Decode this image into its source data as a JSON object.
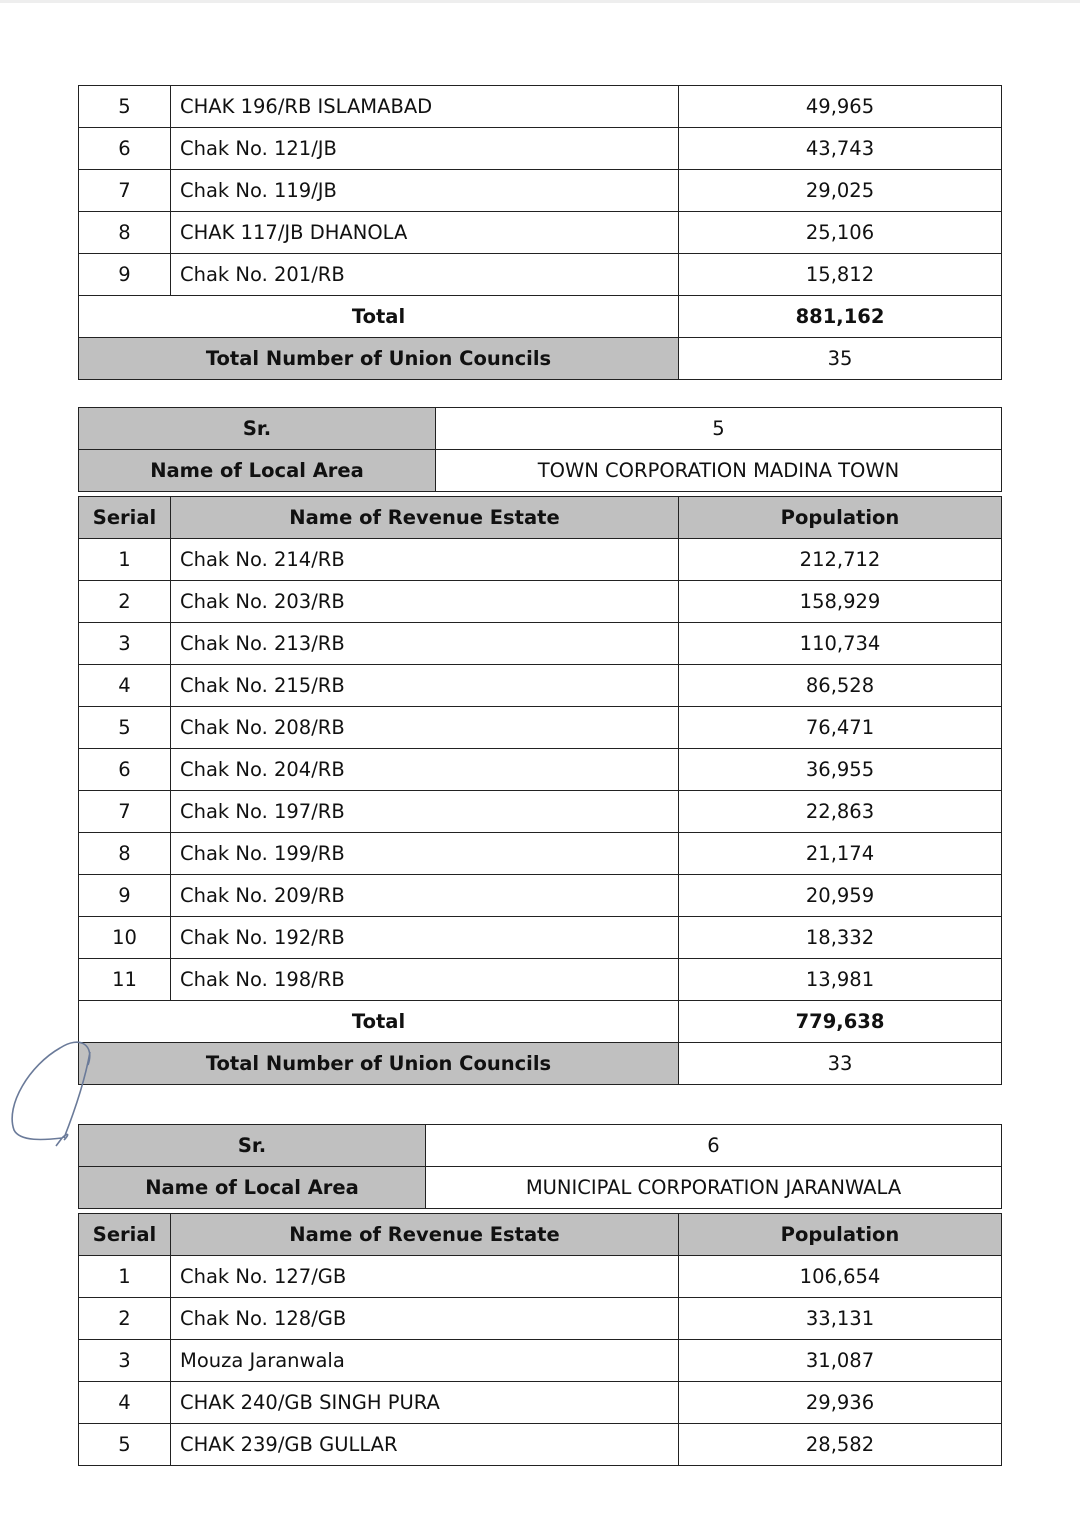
{
  "block1": {
    "rows": [
      {
        "serial": "5",
        "name": "CHAK 196/RB ISLAMABAD",
        "population": "49,965"
      },
      {
        "serial": "6",
        "name": "Chak No. 121/JB",
        "population": "43,743"
      },
      {
        "serial": "7",
        "name": "Chak No. 119/JB",
        "population": "29,025"
      },
      {
        "serial": "8",
        "name": "CHAK 117/JB DHANOLA",
        "population": "25,106"
      },
      {
        "serial": "9",
        "name": "Chak No. 201/RB",
        "population": "15,812"
      }
    ],
    "total_label": "Total",
    "total": "881,162",
    "uc_label": "Total Number of Union Councils",
    "uc": "35"
  },
  "block2": {
    "sr_label": "Sr.",
    "sr": "5",
    "area_label": "Name of Local Area",
    "area": "TOWN CORPORATION MADINA TOWN",
    "headers": {
      "serial": "Serial",
      "name": "Name of Revenue Estate",
      "population": "Population"
    },
    "rows": [
      {
        "serial": "1",
        "name": "Chak No. 214/RB",
        "population": "212,712"
      },
      {
        "serial": "2",
        "name": "Chak No. 203/RB",
        "population": "158,929"
      },
      {
        "serial": "3",
        "name": "Chak No. 213/RB",
        "population": "110,734"
      },
      {
        "serial": "4",
        "name": "Chak No. 215/RB",
        "population": "86,528"
      },
      {
        "serial": "5",
        "name": "Chak No. 208/RB",
        "population": "76,471"
      },
      {
        "serial": "6",
        "name": "Chak No. 204/RB",
        "population": "36,955"
      },
      {
        "serial": "7",
        "name": "Chak No. 197/RB",
        "population": "22,863"
      },
      {
        "serial": "8",
        "name": "Chak No. 199/RB",
        "population": "21,174"
      },
      {
        "serial": "9",
        "name": "Chak No. 209/RB",
        "population": "20,959"
      },
      {
        "serial": "10",
        "name": "Chak No. 192/RB",
        "population": "18,332"
      },
      {
        "serial": "11",
        "name": "Chak No. 198/RB",
        "population": "13,981"
      }
    ],
    "total_label": "Total",
    "total": "779,638",
    "uc_label": "Total Number of Union Councils",
    "uc": "33"
  },
  "block3": {
    "sr_label": "Sr.",
    "sr": "6",
    "area_label": "Name of Local Area",
    "area": "MUNICIPAL CORPORATION JARANWALA",
    "headers": {
      "serial": "Serial",
      "name": "Name of Revenue Estate",
      "population": "Population"
    },
    "rows": [
      {
        "serial": "1",
        "name": "Chak No. 127/GB",
        "population": "106,654"
      },
      {
        "serial": "2",
        "name": "Chak No. 128/GB",
        "population": "33,131"
      },
      {
        "serial": "3",
        "name": "Mouza Jaranwala",
        "population": "31,087"
      },
      {
        "serial": "4",
        "name": "CHAK 240/GB SINGH PURA",
        "population": "29,936"
      },
      {
        "serial": "5",
        "name": "CHAK 239/GB GULLAR",
        "population": "28,582"
      }
    ]
  },
  "colors": {
    "header_gray": "#c0c0c0",
    "border": "#222222",
    "signature_ink": "#6a7a99"
  }
}
